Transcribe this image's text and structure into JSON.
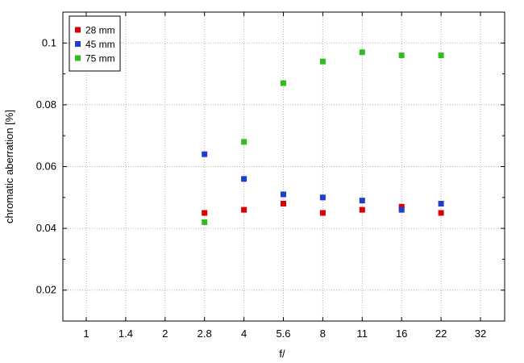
{
  "chart_data": {
    "type": "scatter",
    "title": "",
    "xlabel": "f/",
    "ylabel": "chromatic  aberration [%]",
    "x_categories": [
      "1",
      "1.4",
      "2",
      "2.8",
      "4",
      "5.6",
      "8",
      "11",
      "16",
      "22",
      "32"
    ],
    "ylim": [
      0.01,
      0.11
    ],
    "yticks": [
      0.02,
      0.04,
      0.06,
      0.08,
      0.1
    ],
    "ytick_labels": [
      "0.02",
      "0.04",
      "0.06",
      "0.08",
      "0.1"
    ],
    "grid": true,
    "legend_position": "top-left",
    "series": [
      {
        "name": "28 mm",
        "color": "#dd0000",
        "points": [
          {
            "x": "2.8",
            "y": 0.045
          },
          {
            "x": "4",
            "y": 0.046
          },
          {
            "x": "5.6",
            "y": 0.048
          },
          {
            "x": "8",
            "y": 0.045
          },
          {
            "x": "11",
            "y": 0.046
          },
          {
            "x": "16",
            "y": 0.047
          },
          {
            "x": "22",
            "y": 0.045
          }
        ]
      },
      {
        "name": "45 mm",
        "color": "#1c3fcc",
        "points": [
          {
            "x": "2.8",
            "y": 0.064
          },
          {
            "x": "4",
            "y": 0.056
          },
          {
            "x": "5.6",
            "y": 0.051
          },
          {
            "x": "8",
            "y": 0.05
          },
          {
            "x": "11",
            "y": 0.049
          },
          {
            "x": "16",
            "y": 0.046
          },
          {
            "x": "22",
            "y": 0.048
          }
        ]
      },
      {
        "name": "75 mm",
        "color": "#33bb22",
        "points": [
          {
            "x": "2.8",
            "y": 0.042
          },
          {
            "x": "4",
            "y": 0.068
          },
          {
            "x": "5.6",
            "y": 0.087
          },
          {
            "x": "8",
            "y": 0.094
          },
          {
            "x": "11",
            "y": 0.097
          },
          {
            "x": "16",
            "y": 0.096
          },
          {
            "x": "22",
            "y": 0.096
          }
        ]
      }
    ]
  }
}
